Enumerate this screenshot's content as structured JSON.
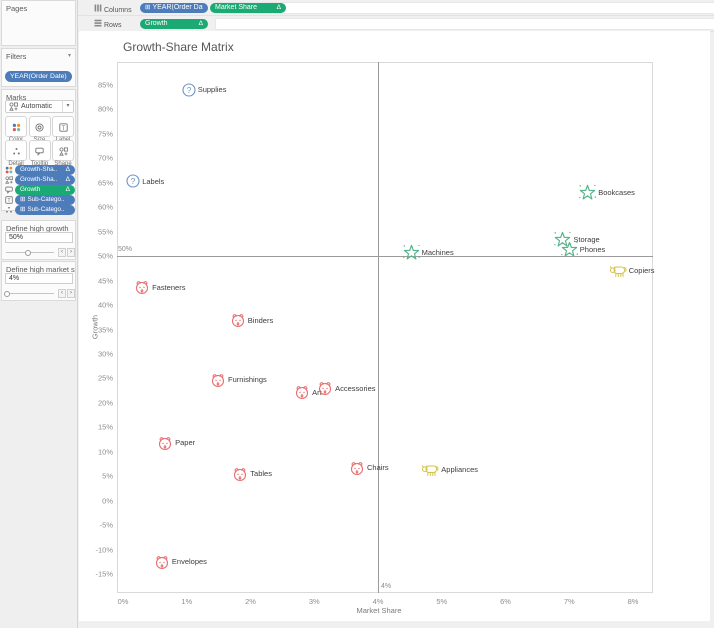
{
  "icons": {
    "caret_down": "▾",
    "delta": "Δ",
    "plus_box": "⊞",
    "spinner_left": "‹",
    "spinner_right": "›"
  },
  "colors": {
    "pill_blue": "#4d7cba",
    "pill_green": "#1ba974",
    "mark_question": "#6b95c4",
    "mark_star": "#57b58b",
    "mark_cow": "#d5c24c",
    "mark_dog": "#e96d70",
    "reference_line": "#9b9b9b"
  },
  "shelves": {
    "columns": {
      "label": "Columns",
      "pills": [
        {
          "text": "YEAR(Order Date)",
          "color": "blue",
          "plus_box": true,
          "delta": false
        },
        {
          "text": "Market Share",
          "color": "green",
          "plus_box": false,
          "delta": true
        }
      ]
    },
    "rows": {
      "label": "Rows",
      "pills": [
        {
          "text": "Growth",
          "color": "green",
          "plus_box": false,
          "delta": true
        }
      ]
    }
  },
  "sidebar": {
    "pages": {
      "title": "Pages"
    },
    "filters": {
      "title": "Filters",
      "pills": [
        {
          "text": "YEAR(Order Date)",
          "color": "blue",
          "plus_box": false,
          "delta": false
        }
      ]
    },
    "marks": {
      "title": "Marks",
      "mark_type": "Automatic",
      "buttons": [
        {
          "label": "Color",
          "icon": "color-icon"
        },
        {
          "label": "Size",
          "icon": "size-icon"
        },
        {
          "label": "Label",
          "icon": "label-icon"
        },
        {
          "label": "Detail",
          "icon": "detail-icon"
        },
        {
          "label": "Tooltip",
          "icon": "tooltip-icon"
        },
        {
          "label": "Shape",
          "icon": "shape-icon"
        }
      ],
      "pills": [
        {
          "icon": "color-icon",
          "text": "Growth-Sha..",
          "color": "blue",
          "plus_box": false,
          "delta": true
        },
        {
          "icon": "shape-icon",
          "text": "Growth-Sha..",
          "color": "blue",
          "plus_box": false,
          "delta": true
        },
        {
          "icon": "tooltip-icon",
          "text": "Growth",
          "color": "green",
          "plus_box": false,
          "delta": true
        },
        {
          "icon": "label-icon",
          "text": "Sub-Catego..",
          "color": "blue",
          "plus_box": true,
          "delta": false
        },
        {
          "icon": "detail-icon",
          "text": "Sub-Catego..",
          "color": "blue",
          "plus_box": true,
          "delta": false
        }
      ]
    },
    "parameters": [
      {
        "title": "Define high growth",
        "value": "50%",
        "slider_position": 0.45
      },
      {
        "title": "Define high market sha..",
        "value": "4%",
        "slider_position": 0.03
      }
    ]
  },
  "chart_data": {
    "type": "scatter",
    "title": "Growth-Share Matrix",
    "xlabel": "Market Share",
    "ylabel": "Growth",
    "grid": false,
    "xlim": [
      -0.1,
      8.3
    ],
    "ylim": [
      -19,
      90
    ],
    "x_tick_values": [
      0,
      1,
      2,
      3,
      4,
      5,
      6,
      7,
      8
    ],
    "x_ticks": [
      "0%",
      "1%",
      "2%",
      "3%",
      "4%",
      "5%",
      "6%",
      "7%",
      "8%"
    ],
    "y_tick_values": [
      85,
      80,
      75,
      70,
      65,
      60,
      55,
      50,
      45,
      40,
      35,
      30,
      25,
      20,
      15,
      10,
      5,
      0,
      -5,
      -10,
      -15
    ],
    "y_ticks": [
      "85%",
      "80%",
      "75%",
      "70%",
      "65%",
      "60%",
      "55%",
      "50%",
      "45%",
      "40%",
      "35%",
      "30%",
      "25%",
      "20%",
      "15%",
      "10%",
      "5%",
      "0%",
      "-5%",
      "-10%",
      "-15%"
    ],
    "reference_lines": [
      {
        "axis": "x",
        "value": 4,
        "label": "4%"
      },
      {
        "axis": "y",
        "value": 50,
        "label": "50%"
      }
    ],
    "series": [
      {
        "name": "question marks",
        "icon": "question-mark-icon",
        "color": "#6b95c4",
        "points": [
          {
            "label": "Supplies",
            "x": 1.03,
            "y": 84.0
          },
          {
            "label": "Labels",
            "x": 0.16,
            "y": 65.3
          }
        ]
      },
      {
        "name": "stars",
        "icon": "star-icon",
        "color": "#57b58b",
        "points": [
          {
            "label": "Machines",
            "x": 4.52,
            "y": 50.8
          },
          {
            "label": "Storage",
            "x": 6.9,
            "y": 53.5
          },
          {
            "label": "Phones",
            "x": 7.0,
            "y": 51.3
          },
          {
            "label": "Bookcases",
            "x": 7.29,
            "y": 63.0
          }
        ]
      },
      {
        "name": "cash cows",
        "icon": "cow-icon",
        "color": "#d5c24c",
        "points": [
          {
            "label": "Appliances",
            "x": 4.82,
            "y": 6.3
          },
          {
            "label": "Copiers",
            "x": 7.76,
            "y": 47.0
          }
        ]
      },
      {
        "name": "dogs",
        "icon": "dog-icon",
        "color": "#e96d70",
        "points": [
          {
            "label": "Fasteners",
            "x": 0.3,
            "y": 43.7
          },
          {
            "label": "Binders",
            "x": 1.8,
            "y": 36.9
          },
          {
            "label": "Furnishings",
            "x": 1.49,
            "y": 24.7
          },
          {
            "label": "Art",
            "x": 2.81,
            "y": 22.2
          },
          {
            "label": "Accessories",
            "x": 3.17,
            "y": 23.0
          },
          {
            "label": "Paper",
            "x": 0.66,
            "y": 11.8
          },
          {
            "label": "Tables",
            "x": 1.84,
            "y": 5.5
          },
          {
            "label": "Chairs",
            "x": 3.67,
            "y": 6.7
          },
          {
            "label": "Envelopes",
            "x": 0.61,
            "y": -12.5
          }
        ]
      }
    ]
  }
}
